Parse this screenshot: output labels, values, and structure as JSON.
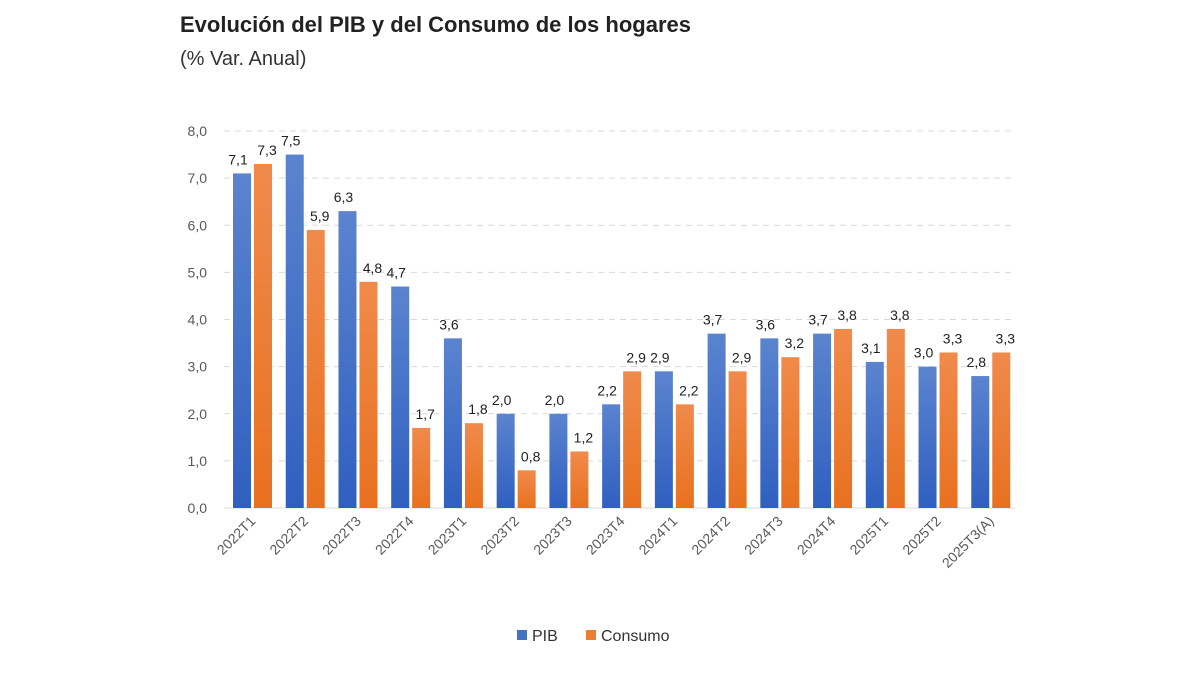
{
  "title": "Evolución del PIB y del Consumo de los hogares",
  "subtitle": "(% Var. Anual)",
  "chart_data": {
    "type": "bar",
    "title": "Evolución del PIB y del Consumo de los hogares",
    "subtitle": "(% Var. Anual)",
    "categories": [
      "2022T1",
      "2022T2",
      "2022T3",
      "2022T4",
      "2023T1",
      "2023T2",
      "2023T3",
      "2023T4",
      "2024T1",
      "2024T2",
      "2024T3",
      "2024T4",
      "2025T1",
      "2025T2",
      "2025T3(A)"
    ],
    "series": [
      {
        "name": "PIB",
        "color": "#4472C4",
        "values": [
          7.1,
          7.5,
          6.3,
          4.7,
          3.6,
          2.0,
          2.0,
          2.2,
          2.9,
          3.7,
          3.6,
          3.7,
          3.1,
          3.0,
          2.8
        ]
      },
      {
        "name": "Consumo",
        "color": "#ED7D31",
        "values": [
          7.3,
          5.9,
          4.8,
          1.7,
          1.8,
          0.8,
          1.2,
          2.9,
          2.2,
          2.9,
          3.2,
          3.8,
          3.8,
          3.3,
          3.3
        ]
      }
    ],
    "yticks": [
      "0,0",
      "1,0",
      "2,0",
      "3,0",
      "4,0",
      "5,0",
      "6,0",
      "7,0",
      "8,0"
    ],
    "ylim": [
      0,
      8
    ],
    "grid": true,
    "legend": "bottom",
    "decimal_separator": ","
  }
}
